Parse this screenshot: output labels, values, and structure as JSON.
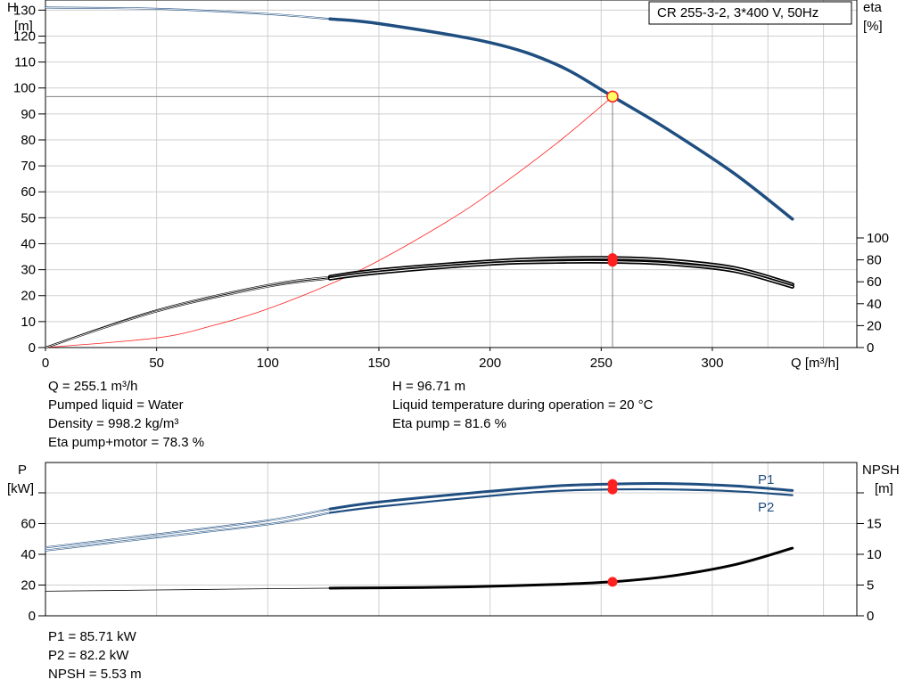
{
  "colors": {
    "blue": "#1f4e80",
    "black": "#000000",
    "red": "#ff2020",
    "grid": "#cfcfcf",
    "op_fill": "#ffff66"
  },
  "top_chart": {
    "title": "CR 255-3-2, 3*400 V, 50Hz",
    "y_left_label_line1": "H",
    "y_left_label_line2": "[m]",
    "y_right_label_line1": "eta",
    "y_right_label_line2": "[%]",
    "x_label": "Q [m³/h]"
  },
  "top_info": {
    "left": [
      "Q = 255.1 m³/h",
      "Pumped liquid = Water",
      "Density = 998.2 kg/m³",
      "Eta pump+motor = 78.3 %"
    ],
    "right": [
      "H = 96.71 m",
      "Liquid temperature during operation = 20 °C",
      "Eta pump = 81.6 %"
    ]
  },
  "bottom_chart": {
    "y_left_label_line1": "P",
    "y_left_label_line2": "[kW]",
    "y_right_label_line1": "NPSH",
    "y_right_label_line2": "[m]",
    "series_label_p1": "P1",
    "series_label_p2": "P2"
  },
  "bottom_info": [
    "P1 = 85.71 kW",
    "P2 = 82.2 kW",
    "NPSH = 5.53 m"
  ],
  "chart_data": [
    {
      "type": "line",
      "title": "CR 255-3-2, 3*400 V, 50Hz",
      "xlabel": "Q [m³/h]",
      "ylabel": "H [m]",
      "y2label": "eta [%]",
      "xlim": [
        0,
        365
      ],
      "ylim": [
        0,
        130
      ],
      "y2lim": [
        0,
        100
      ],
      "x_ticks": [
        0,
        50,
        100,
        150,
        200,
        250,
        300
      ],
      "y_ticks": [
        0,
        10,
        20,
        30,
        40,
        50,
        60,
        70,
        80,
        90,
        100,
        110,
        120,
        130
      ],
      "y2_ticks": [
        0,
        20,
        40,
        60,
        80,
        100
      ],
      "grid": true,
      "operating_point": {
        "x": 255.1,
        "y": 96.71
      },
      "series": [
        {
          "name": "H",
          "axis": "left",
          "thin": [
            [
              0,
              131
            ],
            [
              50,
              130.5
            ],
            [
              100,
              128.5
            ],
            [
              128,
              126.6
            ]
          ],
          "thick": [
            [
              128,
              126.6
            ],
            [
              150,
              124.8
            ],
            [
              200,
              117.5
            ],
            [
              230,
              109
            ],
            [
              255.1,
              96.71
            ],
            [
              280,
              84
            ],
            [
              310,
              67
            ],
            [
              336,
              49.5
            ]
          ]
        },
        {
          "name": "Eta pump",
          "axis": "right",
          "thin": [
            [
              0,
              0
            ],
            [
              50,
              34
            ],
            [
              100,
              57
            ],
            [
              128,
              64.5
            ]
          ],
          "thick": [
            [
              128,
              64.5
            ],
            [
              150,
              70.5
            ],
            [
              200,
              78.5
            ],
            [
              230,
              81.2
            ],
            [
              255.1,
              81.6
            ],
            [
              280,
              79.5
            ],
            [
              310,
              72.5
            ],
            [
              336,
              57.5
            ]
          ]
        },
        {
          "name": "Eta pump+motor",
          "axis": "right",
          "thin": [
            [
              0,
              0
            ],
            [
              50,
              33
            ],
            [
              100,
              55.5
            ],
            [
              128,
              63
            ]
          ],
          "thick": [
            [
              128,
              63
            ],
            [
              150,
              68.5
            ],
            [
              200,
              76.5
            ],
            [
              230,
              78.2
            ],
            [
              255.1,
              78.3
            ],
            [
              280,
              76.5
            ],
            [
              310,
              70
            ],
            [
              336,
              55.5
            ]
          ]
        },
        {
          "name": "System curve",
          "axis": "left",
          "points": [
            [
              0,
              0
            ],
            [
              50,
              3.7
            ],
            [
              75,
              8.4
            ],
            [
              100,
              14.9
            ],
            [
              128,
              24.4
            ],
            [
              150,
              33.5
            ],
            [
              180,
              48.2
            ],
            [
              200,
              59.5
            ],
            [
              230,
              78.7
            ],
            [
              255.1,
              96.71
            ]
          ]
        }
      ]
    },
    {
      "type": "line",
      "ylabel": "P [kW]",
      "y2label": "NPSH [m]",
      "xlim": [
        0,
        365
      ],
      "ylim": [
        0,
        100
      ],
      "y_ticks": [
        0,
        20,
        40,
        60
      ],
      "y2lim": [
        0,
        25
      ],
      "y2_ticks": [
        0,
        5,
        10,
        15
      ],
      "grid": true,
      "operating_point": {
        "x": 255.1
      },
      "series": [
        {
          "name": "P1",
          "axis": "left",
          "thin": [
            [
              0,
              44.5
            ],
            [
              50,
              53
            ],
            [
              100,
              62
            ],
            [
              128,
              69.5
            ]
          ],
          "thick": [
            [
              128,
              69.5
            ],
            [
              150,
              74
            ],
            [
              200,
              81
            ],
            [
              230,
              84.5
            ],
            [
              255.1,
              85.71
            ],
            [
              280,
              86
            ],
            [
              310,
              84.5
            ],
            [
              336,
              81.5
            ]
          ]
        },
        {
          "name": "P2",
          "axis": "left",
          "thin": [
            [
              0,
              42.5
            ],
            [
              50,
              51
            ],
            [
              100,
              59.5
            ],
            [
              128,
              67
            ]
          ],
          "thick": [
            [
              128,
              67
            ],
            [
              150,
              71
            ],
            [
              200,
              78
            ],
            [
              230,
              81.2
            ],
            [
              255.1,
              82.2
            ],
            [
              280,
              82.2
            ],
            [
              310,
              81
            ],
            [
              336,
              78.5
            ]
          ]
        },
        {
          "name": "NPSH",
          "axis": "right",
          "thin": [
            [
              0,
              4
            ],
            [
              50,
              4.2
            ],
            [
              100,
              4.4
            ],
            [
              128,
              4.5
            ]
          ],
          "thick": [
            [
              128,
              4.5
            ],
            [
              170,
              4.6
            ],
            [
              200,
              4.8
            ],
            [
              230,
              5.1
            ],
            [
              255.1,
              5.53
            ],
            [
              280,
              6.4
            ],
            [
              310,
              8.3
            ],
            [
              336,
              11
            ]
          ]
        }
      ]
    }
  ]
}
